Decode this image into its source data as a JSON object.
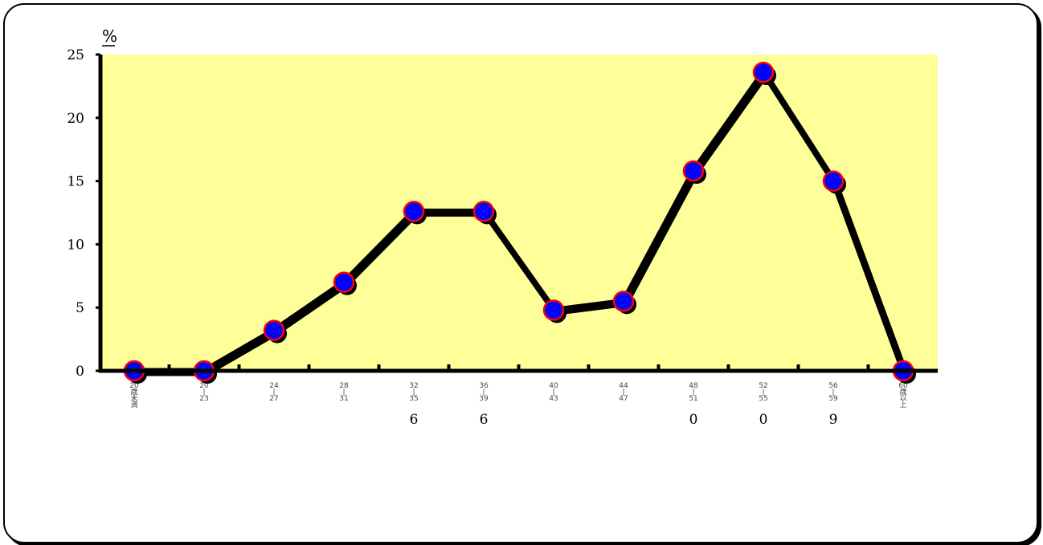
{
  "colors": {
    "plot_background": "#FFFF99",
    "line": "#000000",
    "marker_fill": "#0000FF",
    "marker_edge": "#FF0000"
  },
  "chart_data": {
    "type": "line",
    "ylabel": "%",
    "ylim": [
      0,
      25
    ],
    "yticks": [
      "0",
      "5",
      "10",
      "15",
      "20",
      "25"
    ],
    "categories": [
      [
        "20",
        "歳",
        "未",
        "満"
      ],
      [
        "20",
        "|",
        "23"
      ],
      [
        "24",
        "|",
        "27"
      ],
      [
        "28",
        "|",
        "31"
      ],
      [
        "32",
        "|",
        "35"
      ],
      [
        "36",
        "|",
        "39"
      ],
      [
        "40",
        "|",
        "43"
      ],
      [
        "44",
        "|",
        "47"
      ],
      [
        "48",
        "|",
        "51"
      ],
      [
        "52",
        "|",
        "55"
      ],
      [
        "56",
        "|",
        "59"
      ],
      [
        "60",
        "歳",
        "以",
        "上"
      ]
    ],
    "category_notes": [
      "",
      "",
      "",
      "",
      "6",
      "6",
      "",
      "",
      "0",
      "0",
      "9",
      ""
    ],
    "values": [
      0,
      0,
      3.2,
      7.0,
      12.6,
      12.6,
      4.8,
      5.5,
      15.8,
      23.6,
      15.0,
      0
    ],
    "grid": false,
    "legend": "none"
  }
}
